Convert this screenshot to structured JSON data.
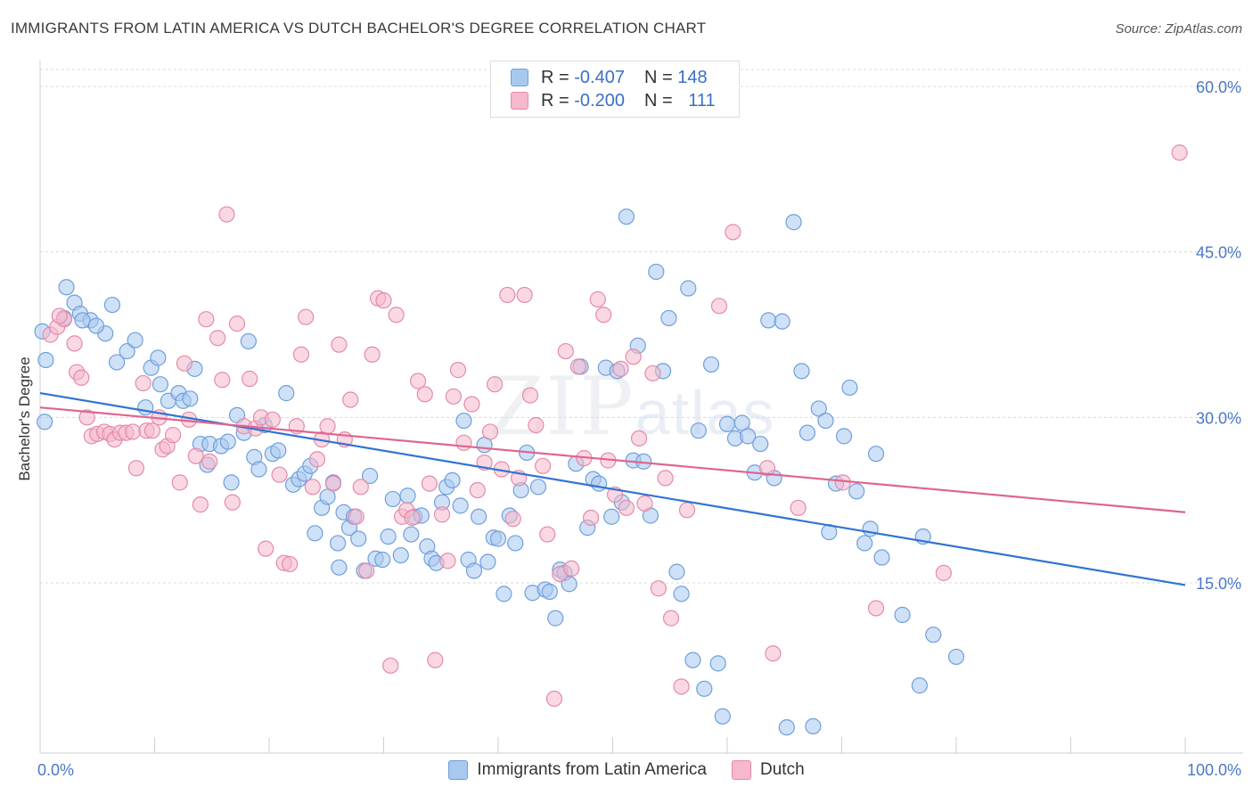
{
  "title": "IMMIGRANTS FROM LATIN AMERICA VS DUTCH BACHELOR'S DEGREE CORRELATION CHART",
  "source": "Source: ZipAtlas.com",
  "watermark": {
    "zip": "ZIP",
    "atlas": "atlas"
  },
  "colors": {
    "blue_fill": "#a8c8f0",
    "blue_stroke": "#6f9fdc",
    "blue_line": "#3273d2",
    "pink_fill": "#f6b8cc",
    "pink_stroke": "#e58aa8",
    "pink_line": "#e0648e",
    "axis_label": "#4a78c8",
    "grid": "#d8d8d8"
  },
  "legend": {
    "rows": [
      {
        "r_label": "R = ",
        "r_value": "-0.407",
        "n_label": "N = ",
        "n_value": "148"
      },
      {
        "r_label": "R = ",
        "r_value": "-0.200",
        "n_label": "N = ",
        "n_value": "111"
      }
    ]
  },
  "chart_data": {
    "type": "scatter",
    "xlabel": "",
    "ylabel": "Bachelor's Degree",
    "xlim": [
      0,
      100
    ],
    "ylim": [
      0,
      60
    ],
    "x_tick_labels": [
      "0.0%",
      "100.0%"
    ],
    "y_ticks": [
      15,
      30,
      45,
      60
    ],
    "y_tick_labels": [
      "15.0%",
      "30.0%",
      "45.0%",
      "60.0%"
    ],
    "grid": "horizontal-dashed",
    "legend_placement": "top-center",
    "series": [
      {
        "name": "Immigrants from Latin America",
        "color": "#a8c8f0",
        "trend": {
          "x0": 0,
          "y0": 32.2,
          "x1": 100,
          "y1": 14.8
        },
        "points": [
          [
            0.5,
            35.2
          ],
          [
            2.3,
            41.8
          ],
          [
            3.0,
            40.4
          ],
          [
            3.5,
            39.4
          ],
          [
            4.4,
            38.8
          ],
          [
            3.7,
            38.8
          ],
          [
            6.3,
            40.2
          ],
          [
            5.7,
            37.6
          ],
          [
            2.1,
            39.0
          ],
          [
            0.4,
            29.6
          ],
          [
            6.7,
            35.0
          ],
          [
            7.6,
            36.0
          ],
          [
            8.3,
            37.0
          ],
          [
            9.2,
            30.9
          ],
          [
            9.7,
            34.5
          ],
          [
            10.3,
            35.4
          ],
          [
            10.5,
            33.0
          ],
          [
            11.2,
            31.5
          ],
          [
            12.1,
            32.2
          ],
          [
            12.5,
            31.5
          ],
          [
            13.1,
            31.7
          ],
          [
            13.5,
            34.4
          ],
          [
            14.0,
            27.6
          ],
          [
            14.6,
            25.7
          ],
          [
            14.8,
            27.6
          ],
          [
            15.8,
            27.4
          ],
          [
            16.4,
            27.8
          ],
          [
            16.7,
            24.1
          ],
          [
            17.2,
            30.2
          ],
          [
            17.8,
            28.6
          ],
          [
            18.2,
            36.9
          ],
          [
            18.7,
            26.4
          ],
          [
            19.1,
            25.3
          ],
          [
            19.6,
            29.3
          ],
          [
            20.3,
            26.7
          ],
          [
            20.8,
            27.0
          ],
          [
            21.5,
            32.2
          ],
          [
            22.1,
            23.9
          ],
          [
            22.6,
            24.4
          ],
          [
            23.1,
            24.9
          ],
          [
            23.6,
            25.6
          ],
          [
            24.0,
            19.5
          ],
          [
            24.6,
            21.8
          ],
          [
            25.1,
            22.8
          ],
          [
            25.6,
            24.1
          ],
          [
            26.0,
            18.6
          ],
          [
            26.5,
            21.4
          ],
          [
            27.0,
            20.0
          ],
          [
            27.4,
            21.0
          ],
          [
            27.8,
            19.0
          ],
          [
            28.3,
            16.1
          ],
          [
            28.8,
            24.7
          ],
          [
            29.3,
            17.2
          ],
          [
            29.9,
            17.1
          ],
          [
            30.4,
            19.2
          ],
          [
            30.8,
            22.6
          ],
          [
            31.5,
            17.5
          ],
          [
            32.1,
            22.9
          ],
          [
            32.4,
            19.4
          ],
          [
            32.7,
            21.0
          ],
          [
            33.3,
            21.1
          ],
          [
            33.8,
            18.3
          ],
          [
            34.2,
            17.2
          ],
          [
            34.6,
            16.8
          ],
          [
            35.1,
            22.3
          ],
          [
            35.5,
            23.7
          ],
          [
            36.0,
            24.3
          ],
          [
            36.7,
            22.0
          ],
          [
            37.0,
            29.7
          ],
          [
            37.4,
            17.1
          ],
          [
            37.9,
            16.1
          ],
          [
            38.3,
            21.0
          ],
          [
            38.8,
            27.5
          ],
          [
            39.1,
            16.9
          ],
          [
            39.6,
            19.1
          ],
          [
            40.0,
            19.0
          ],
          [
            40.5,
            14.0
          ],
          [
            41.0,
            21.1
          ],
          [
            41.5,
            18.6
          ],
          [
            42.0,
            23.4
          ],
          [
            42.5,
            26.8
          ],
          [
            43.0,
            14.1
          ],
          [
            43.5,
            23.7
          ],
          [
            44.1,
            14.4
          ],
          [
            44.5,
            14.2
          ],
          [
            45.0,
            11.8
          ],
          [
            45.4,
            16.2
          ],
          [
            45.8,
            15.9
          ],
          [
            46.2,
            14.9
          ],
          [
            46.8,
            25.8
          ],
          [
            47.2,
            34.6
          ],
          [
            47.8,
            20.0
          ],
          [
            48.3,
            24.4
          ],
          [
            48.8,
            24.0
          ],
          [
            49.4,
            34.5
          ],
          [
            49.9,
            21.0
          ],
          [
            50.4,
            34.2
          ],
          [
            50.8,
            22.3
          ],
          [
            51.2,
            48.2
          ],
          [
            51.8,
            26.1
          ],
          [
            52.2,
            36.5
          ],
          [
            52.7,
            26.0
          ],
          [
            53.3,
            21.1
          ],
          [
            53.8,
            43.2
          ],
          [
            54.4,
            34.2
          ],
          [
            54.9,
            39.0
          ],
          [
            55.6,
            16.0
          ],
          [
            56.0,
            14.0
          ],
          [
            56.6,
            41.7
          ],
          [
            57.0,
            8.0
          ],
          [
            57.5,
            28.8
          ],
          [
            58.0,
            5.4
          ],
          [
            58.6,
            34.8
          ],
          [
            59.2,
            7.7
          ],
          [
            59.6,
            2.9
          ],
          [
            60.0,
            29.4
          ],
          [
            60.7,
            28.1
          ],
          [
            61.3,
            29.5
          ],
          [
            61.8,
            28.3
          ],
          [
            62.4,
            25.0
          ],
          [
            62.9,
            27.6
          ],
          [
            63.6,
            38.8
          ],
          [
            64.1,
            24.5
          ],
          [
            64.8,
            38.7
          ],
          [
            65.2,
            1.9
          ],
          [
            65.8,
            47.7
          ],
          [
            66.5,
            34.2
          ],
          [
            67.0,
            28.6
          ],
          [
            67.5,
            2.0
          ],
          [
            68.0,
            30.8
          ],
          [
            68.6,
            29.7
          ],
          [
            68.9,
            19.6
          ],
          [
            69.5,
            24.0
          ],
          [
            70.2,
            28.3
          ],
          [
            70.7,
            32.7
          ],
          [
            71.3,
            23.3
          ],
          [
            72.0,
            18.6
          ],
          [
            72.5,
            19.9
          ],
          [
            73.0,
            26.7
          ],
          [
            73.5,
            17.3
          ],
          [
            75.3,
            12.1
          ],
          [
            76.8,
            5.7
          ],
          [
            77.1,
            19.2
          ],
          [
            78.0,
            10.3
          ],
          [
            80.0,
            8.3
          ],
          [
            0.2,
            37.8
          ],
          [
            4.9,
            38.3
          ],
          [
            26.1,
            16.4
          ]
        ]
      },
      {
        "name": "Dutch",
        "color": "#f6b8cc",
        "trend": {
          "x0": 0,
          "y0": 30.9,
          "x1": 100,
          "y1": 21.4
        },
        "points": [
          [
            0.9,
            37.5
          ],
          [
            1.5,
            38.2
          ],
          [
            2.1,
            38.9
          ],
          [
            3.0,
            36.7
          ],
          [
            3.2,
            34.1
          ],
          [
            3.6,
            33.6
          ],
          [
            4.1,
            30.0
          ],
          [
            4.5,
            28.3
          ],
          [
            5.0,
            28.5
          ],
          [
            5.6,
            28.7
          ],
          [
            6.1,
            28.5
          ],
          [
            6.5,
            28.0
          ],
          [
            7.0,
            28.6
          ],
          [
            7.5,
            28.6
          ],
          [
            8.1,
            28.7
          ],
          [
            8.4,
            25.4
          ],
          [
            9.0,
            33.1
          ],
          [
            9.3,
            28.8
          ],
          [
            9.8,
            28.8
          ],
          [
            10.4,
            30.0
          ],
          [
            10.7,
            27.1
          ],
          [
            11.1,
            27.4
          ],
          [
            11.6,
            28.4
          ],
          [
            12.2,
            24.1
          ],
          [
            12.6,
            34.9
          ],
          [
            13.0,
            29.8
          ],
          [
            13.6,
            26.5
          ],
          [
            14.0,
            22.1
          ],
          [
            14.5,
            38.9
          ],
          [
            14.8,
            26.0
          ],
          [
            15.5,
            37.2
          ],
          [
            15.9,
            33.4
          ],
          [
            16.3,
            48.4
          ],
          [
            16.8,
            22.3
          ],
          [
            17.2,
            38.5
          ],
          [
            17.8,
            29.2
          ],
          [
            18.3,
            33.5
          ],
          [
            18.8,
            29.0
          ],
          [
            19.3,
            30.0
          ],
          [
            19.7,
            18.1
          ],
          [
            20.3,
            29.8
          ],
          [
            20.9,
            24.8
          ],
          [
            21.3,
            16.8
          ],
          [
            21.8,
            16.7
          ],
          [
            22.4,
            29.2
          ],
          [
            22.8,
            35.7
          ],
          [
            23.2,
            39.1
          ],
          [
            23.8,
            23.7
          ],
          [
            24.2,
            26.2
          ],
          [
            24.6,
            28.0
          ],
          [
            25.1,
            29.2
          ],
          [
            25.6,
            24.0
          ],
          [
            26.1,
            36.6
          ],
          [
            26.6,
            28.0
          ],
          [
            27.1,
            31.6
          ],
          [
            27.6,
            21.0
          ],
          [
            28.0,
            23.7
          ],
          [
            28.5,
            16.1
          ],
          [
            29.0,
            35.7
          ],
          [
            29.5,
            40.8
          ],
          [
            30.0,
            40.6
          ],
          [
            30.6,
            7.5
          ],
          [
            31.1,
            39.3
          ],
          [
            31.6,
            21.0
          ],
          [
            32.0,
            21.6
          ],
          [
            32.5,
            20.9
          ],
          [
            33.0,
            33.3
          ],
          [
            33.6,
            32.1
          ],
          [
            34.0,
            24.0
          ],
          [
            34.5,
            8.0
          ],
          [
            35.1,
            21.2
          ],
          [
            35.6,
            17.0
          ],
          [
            36.1,
            31.9
          ],
          [
            36.5,
            34.3
          ],
          [
            37.0,
            27.7
          ],
          [
            37.7,
            31.2
          ],
          [
            38.2,
            23.4
          ],
          [
            38.8,
            25.9
          ],
          [
            39.3,
            28.7
          ],
          [
            39.7,
            33.0
          ],
          [
            40.3,
            25.3
          ],
          [
            40.8,
            41.1
          ],
          [
            41.3,
            20.8
          ],
          [
            41.8,
            24.5
          ],
          [
            42.3,
            41.1
          ],
          [
            42.8,
            32.0
          ],
          [
            43.3,
            29.3
          ],
          [
            43.9,
            25.6
          ],
          [
            44.3,
            19.4
          ],
          [
            44.9,
            4.5
          ],
          [
            45.4,
            15.8
          ],
          [
            45.9,
            36.0
          ],
          [
            46.4,
            16.3
          ],
          [
            47.0,
            34.6
          ],
          [
            47.5,
            26.3
          ],
          [
            48.1,
            20.9
          ],
          [
            48.7,
            40.7
          ],
          [
            49.2,
            39.3
          ],
          [
            49.6,
            26.1
          ],
          [
            50.2,
            23.0
          ],
          [
            50.7,
            34.4
          ],
          [
            51.2,
            21.8
          ],
          [
            51.8,
            35.5
          ],
          [
            52.3,
            28.1
          ],
          [
            52.8,
            22.2
          ],
          [
            53.5,
            34.0
          ],
          [
            54.0,
            14.5
          ],
          [
            54.6,
            24.5
          ],
          [
            55.1,
            11.8
          ],
          [
            56.0,
            5.6
          ],
          [
            56.5,
            21.6
          ],
          [
            59.3,
            40.1
          ],
          [
            60.5,
            46.8
          ],
          [
            63.5,
            25.4
          ],
          [
            64.0,
            8.6
          ],
          [
            66.2,
            21.8
          ],
          [
            70.1,
            24.1
          ],
          [
            73.0,
            12.7
          ],
          [
            78.9,
            15.9
          ],
          [
            99.5,
            54.0
          ],
          [
            1.7,
            39.2
          ]
        ]
      }
    ]
  },
  "bottom_legend": {
    "items": [
      "Immigrants from Latin America",
      "Dutch"
    ]
  }
}
